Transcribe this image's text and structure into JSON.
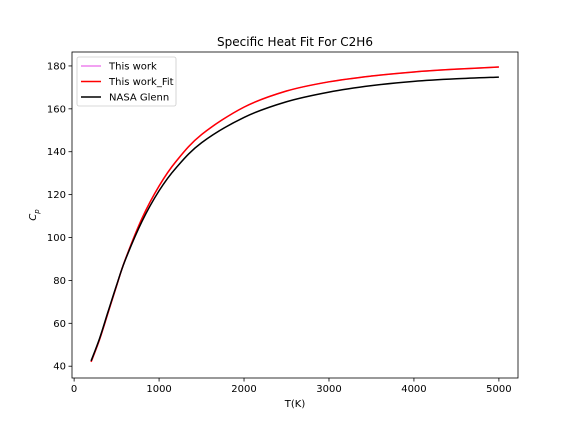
{
  "chart_data": {
    "type": "line",
    "title": "Specific Heat Fit For C2H6",
    "xlabel": "T(K)",
    "ylabel_main": "C",
    "ylabel_sub": "p",
    "xlim": [
      -25,
      5225
    ],
    "ylim": [
      34.5,
      186.5
    ],
    "x_ticks": [
      0,
      1000,
      2000,
      3000,
      4000,
      5000
    ],
    "y_ticks": [
      40,
      60,
      80,
      100,
      120,
      140,
      160,
      180
    ],
    "grid": false,
    "legend_position": "upper-left",
    "x": [
      200,
      300,
      400,
      500,
      600,
      800,
      1000,
      1200,
      1500,
      2000,
      2500,
      3000,
      3500,
      4000,
      4500,
      5000
    ],
    "series": [
      {
        "name": "This work",
        "color": "#ee82ee",
        "values": [
          42.0,
          52.5,
          65.0,
          77.5,
          89.5,
          109.0,
          124.0,
          135.5,
          148.0,
          160.8,
          168.3,
          172.6,
          175.3,
          177.2,
          178.5,
          179.5
        ]
      },
      {
        "name": "This work_Fit",
        "color": "#ff0000",
        "values": [
          42.0,
          52.5,
          65.0,
          77.5,
          89.5,
          109.0,
          124.0,
          135.5,
          148.0,
          160.8,
          168.3,
          172.6,
          175.3,
          177.2,
          178.5,
          179.5
        ]
      },
      {
        "name": "NASA Glenn",
        "color": "#000000",
        "values": [
          42.5,
          53.0,
          65.5,
          77.8,
          89.3,
          107.6,
          121.8,
          132.5,
          144.2,
          156.0,
          163.3,
          167.8,
          170.8,
          172.8,
          174.0,
          174.8
        ]
      }
    ]
  }
}
